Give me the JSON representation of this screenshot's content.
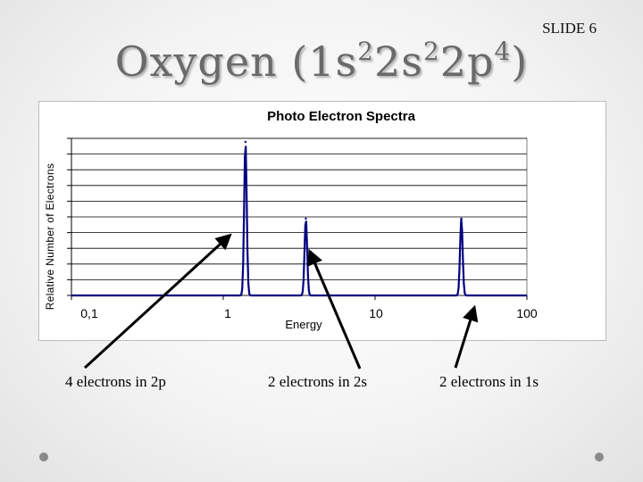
{
  "slide": {
    "number_label": "SLIDE 6",
    "title_text": "Oxygen (1s",
    "title_sup1": "2",
    "title_mid1": "2s",
    "title_sup2": "2",
    "title_mid2": "2p",
    "title_sup3": "4",
    "title_end": ")"
  },
  "annotations": [
    {
      "label": "4 electrons in 2p"
    },
    {
      "label": "2 electrons in 2s"
    },
    {
      "label": "2 electrons in 1s"
    }
  ],
  "chart_data": {
    "type": "line",
    "title": "Photo Electron Spectra",
    "xlabel": "Energy",
    "ylabel": "Relative Number of Electrons",
    "x_scale": "log",
    "xlim": [
      0.1,
      100
    ],
    "x_ticks": [
      "0,1",
      "1",
      "10",
      "100"
    ],
    "y_tick_count": 10,
    "grid": true,
    "legend": "none",
    "line_color": "#000080",
    "series": [
      {
        "peaks": [
          {
            "x": 1.4,
            "height": 1.0
          },
          {
            "x": 3.5,
            "height": 0.5
          },
          {
            "x": 37,
            "height": 0.5
          }
        ]
      }
    ]
  }
}
